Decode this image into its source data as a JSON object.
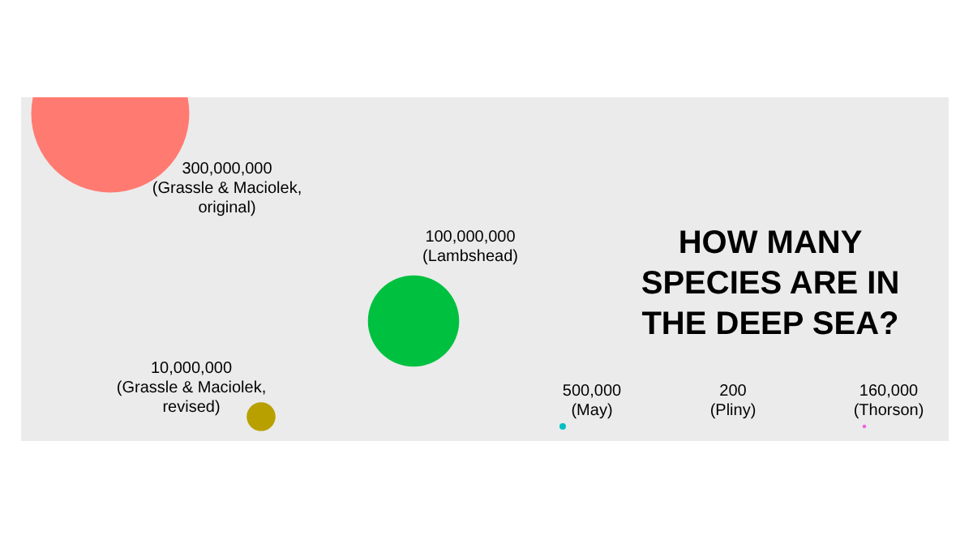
{
  "chart_data": {
    "type": "other",
    "title": "HOW MANY SPECIES ARE IN THE DEEP SEA?",
    "categories": [
      "(Grassle & Maciolek, original)",
      "(Grassle & Maciolek, revised)",
      "(Lambshead)",
      "(May)",
      "(Pliny)",
      "(Thorson)"
    ],
    "values": [
      300000000,
      10000000,
      100000000,
      500000,
      200,
      160000
    ],
    "colors": [
      "#ff7b72",
      "#b8a000",
      "#00c040",
      "#00bfc4",
      "#a0a0a0",
      "#f060e0"
    ],
    "value_labels": [
      "300,000,000",
      "10,000,000",
      "100,000,000",
      "500,000",
      "200",
      "160,000"
    ]
  }
}
